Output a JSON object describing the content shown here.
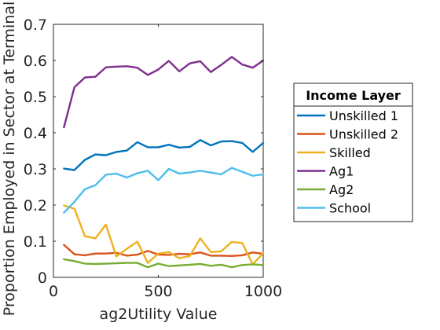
{
  "chart_data": {
    "type": "line",
    "title": "",
    "xlabel": "ag2Utility Value",
    "ylabel": "Proportion Employed in Sector at Terminal",
    "xlim": [
      0,
      1000
    ],
    "ylim": [
      0,
      0.7
    ],
    "xticks": [
      0,
      500,
      1000
    ],
    "xtick_labels": [
      "0",
      "500",
      "1000"
    ],
    "yticks": [
      0,
      0.1,
      0.2,
      0.3,
      0.4,
      0.5,
      0.6,
      0.7
    ],
    "ytick_labels": [
      "0",
      "0.1",
      "0.2",
      "0.3",
      "0.4",
      "0.5",
      "0.6",
      "0.7"
    ],
    "grid": false,
    "legend": {
      "title": "Income Layer",
      "placement": "outside-right"
    },
    "x": [
      50,
      100,
      150,
      200,
      250,
      300,
      350,
      400,
      450,
      500,
      550,
      600,
      650,
      700,
      750,
      800,
      850,
      900,
      950,
      1000
    ],
    "series": [
      {
        "name": "Unskilled 1",
        "color": "#0072BD",
        "values": [
          0.301,
          0.297,
          0.325,
          0.34,
          0.338,
          0.347,
          0.351,
          0.374,
          0.36,
          0.36,
          0.367,
          0.359,
          0.361,
          0.38,
          0.365,
          0.376,
          0.377,
          0.372,
          0.347,
          0.372
        ]
      },
      {
        "name": "Unskilled 2",
        "color": "#D95319",
        "values": [
          0.09,
          0.064,
          0.061,
          0.066,
          0.066,
          0.068,
          0.06,
          0.063,
          0.073,
          0.063,
          0.062,
          0.065,
          0.064,
          0.069,
          0.06,
          0.06,
          0.059,
          0.061,
          0.069,
          0.065
        ]
      },
      {
        "name": "Skilled",
        "color": "#EDB120",
        "values": [
          0.199,
          0.19,
          0.114,
          0.108,
          0.146,
          0.058,
          0.079,
          0.099,
          0.04,
          0.066,
          0.07,
          0.053,
          0.059,
          0.108,
          0.07,
          0.072,
          0.098,
          0.095,
          0.036,
          0.067
        ]
      },
      {
        "name": "Ag1",
        "color": "#7E2F8E",
        "values": [
          0.415,
          0.526,
          0.553,
          0.555,
          0.581,
          0.583,
          0.584,
          0.58,
          0.56,
          0.575,
          0.599,
          0.57,
          0.592,
          0.598,
          0.568,
          0.588,
          0.61,
          0.589,
          0.58,
          0.6
        ]
      },
      {
        "name": "Ag2",
        "color": "#77AC30",
        "values": [
          0.05,
          0.045,
          0.038,
          0.037,
          0.038,
          0.039,
          0.04,
          0.04,
          0.028,
          0.038,
          0.031,
          0.033,
          0.035,
          0.037,
          0.032,
          0.035,
          0.028,
          0.034,
          0.036,
          0.034
        ]
      },
      {
        "name": "School",
        "color": "#4DBEEE",
        "values": [
          0.179,
          0.209,
          0.244,
          0.255,
          0.284,
          0.287,
          0.276,
          0.288,
          0.295,
          0.269,
          0.3,
          0.287,
          0.29,
          0.295,
          0.29,
          0.285,
          0.303,
          0.292,
          0.281,
          0.285
        ]
      }
    ]
  }
}
